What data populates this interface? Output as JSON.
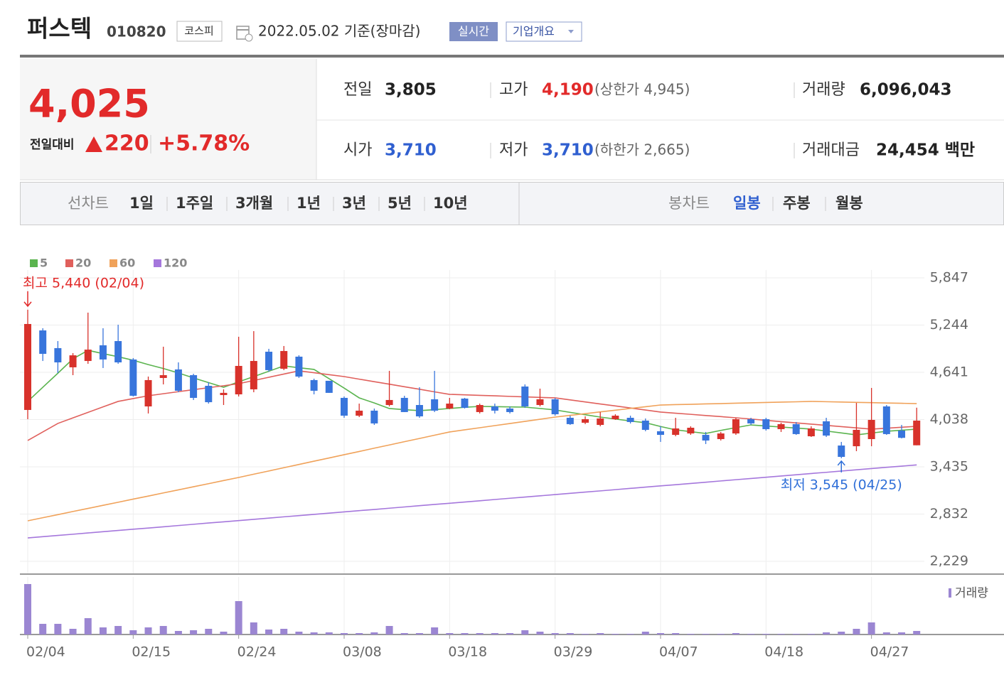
{
  "header": {
    "name": "퍼스텍",
    "code": "010820",
    "market": "코스피",
    "date": "2022.05.02 기준(장마감)",
    "realtime_button": "실시간",
    "company_button": "기업개요"
  },
  "quote": {
    "price": "4,025",
    "change_label": "전일대비",
    "change": "220",
    "change_pct": "+5.78%",
    "items": [
      {
        "label": "전일",
        "value": "3,805"
      },
      {
        "label": "고가",
        "value": "4,190",
        "note": "(상한가 4,945)"
      },
      {
        "label": "거래량",
        "value": "6,096,043"
      },
      {
        "label": "시가",
        "value": "3,710"
      },
      {
        "label": "저가",
        "value": "3,710",
        "note": "(하한가 2,665)"
      },
      {
        "label": "거래대금",
        "value": "24,454 백만"
      }
    ]
  },
  "tabs": {
    "line_chart": {
      "label": "선차트",
      "periods": [
        "1일",
        "1주일",
        "3개월",
        "1년",
        "3년",
        "5년",
        "10년"
      ]
    },
    "candle_chart": {
      "label": "봉차트",
      "periods": [
        "일봉",
        "주봉",
        "월봉"
      ],
      "selected": "일봉"
    }
  },
  "chart_data": {
    "type": "candlestick",
    "up_color": "#d8322b",
    "down_color": "#3875dc",
    "grid": true,
    "categories": [
      "02/04",
      null,
      null,
      null,
      null,
      null,
      null,
      "02/15",
      null,
      null,
      null,
      null,
      null,
      null,
      "02/24",
      null,
      null,
      null,
      null,
      null,
      null,
      "03/08",
      null,
      null,
      null,
      null,
      null,
      null,
      "03/18",
      null,
      null,
      null,
      null,
      null,
      null,
      "03/29",
      null,
      null,
      null,
      null,
      null,
      null,
      "04/07",
      null,
      null,
      null,
      null,
      null,
      null,
      "04/18",
      null,
      null,
      null,
      null,
      null,
      null,
      "04/27",
      null,
      null,
      null
    ],
    "open": [
      4161,
      5176,
      4950,
      4705,
      4786,
      4986,
      5040,
      4805,
      4206,
      4569,
      4678,
      4605,
      4469,
      4351,
      4360,
      4424,
      4904,
      4687,
      4841,
      4542,
      4533,
      4315,
      4088,
      4152,
      4224,
      4315,
      4224,
      4297,
      4179,
      4306,
      4134,
      4206,
      4179,
      4460,
      4224,
      4297,
      4061,
      3998,
      3970,
      4043,
      4061,
      4025,
      3889,
      3843,
      3861,
      3843,
      3789,
      3861,
      4043,
      4043,
      3916,
      3980,
      3825,
      4016,
      3707,
      3698,
      3789,
      4206,
      3898,
      3710
    ],
    "high": [
      5440,
      5204,
      5040,
      4886,
      5403,
      5204,
      5249,
      4823,
      4587,
      4968,
      4768,
      4623,
      4514,
      4424,
      5095,
      5167,
      4941,
      4977,
      4859,
      4560,
      4533,
      4333,
      4242,
      4179,
      4660,
      4342,
      4451,
      4660,
      4315,
      4315,
      4242,
      4242,
      4206,
      4487,
      4433,
      4315,
      4088,
      4079,
      4134,
      4106,
      4088,
      4052,
      3952,
      4061,
      3952,
      3880,
      3880,
      4061,
      4061,
      4061,
      3998,
      4007,
      3952,
      4061,
      3753,
      4251,
      4442,
      4224,
      3970,
      4190
    ],
    "low": [
      4043,
      4786,
      4632,
      4605,
      4750,
      4696,
      4750,
      4333,
      4116,
      4487,
      4387,
      4288,
      4242,
      4224,
      4333,
      4387,
      4650,
      4669,
      4569,
      4360,
      4379,
      4061,
      4070,
      3970,
      4206,
      4134,
      4061,
      4134,
      4170,
      4179,
      4116,
      4116,
      4116,
      4188,
      4206,
      4088,
      3970,
      3980,
      3952,
      4034,
      3988,
      3889,
      3753,
      3825,
      3843,
      3726,
      3771,
      3843,
      3970,
      3898,
      3880,
      3843,
      3816,
      3816,
      3545,
      3635,
      3698,
      3843,
      3798,
      3710
    ],
    "close": [
      5258,
      4877,
      4768,
      4858,
      4931,
      4805,
      4768,
      4342,
      4542,
      4605,
      4406,
      4315,
      4260,
      4379,
      4723,
      4786,
      4669,
      4913,
      4587,
      4406,
      4379,
      4088,
      4152,
      3989,
      4288,
      4134,
      4079,
      4152,
      4242,
      4188,
      4224,
      4152,
      4134,
      4206,
      4297,
      4106,
      3980,
      4043,
      4052,
      4088,
      4007,
      3907,
      3843,
      3925,
      3934,
      3771,
      3861,
      4043,
      3989,
      3916,
      3980,
      3853,
      3925,
      3834,
      3562,
      3907,
      4034,
      3853,
      3805,
      4025
    ],
    "series": [
      {
        "name": "5",
        "color": "#5bb44f",
        "values": [
          4270,
          4450,
          4630,
          4813,
          4922,
          4880,
          4840,
          4795,
          4740,
          4690,
          4633,
          4570,
          4510,
          4451,
          4520,
          4587,
          4655,
          4723,
          4700,
          4678,
          4560,
          4440,
          4315,
          4250,
          4179,
          4165,
          4152,
          4165,
          4180,
          4195,
          4206,
          4203,
          4200,
          4197,
          4180,
          4161,
          4130,
          4100,
          4070,
          4045,
          4020,
          3998,
          3950,
          3907,
          3884,
          3861,
          3900,
          3935,
          3970,
          3956,
          3943,
          3930,
          3916,
          3892,
          3868,
          3843,
          3866,
          3889,
          3902,
          3916
        ]
      },
      {
        "name": "20",
        "color": "#e0605c",
        "values": [
          3771,
          3880,
          3989,
          4060,
          4130,
          4200,
          4270,
          4306,
          4342,
          4368,
          4394,
          4420,
          4445,
          4470,
          4496,
          4537,
          4578,
          4619,
          4660,
          4636,
          4611,
          4587,
          4554,
          4522,
          4490,
          4457,
          4425,
          4392,
          4360,
          4354,
          4347,
          4341,
          4334,
          4328,
          4321,
          4315,
          4289,
          4263,
          4237,
          4212,
          4186,
          4160,
          4134,
          4119,
          4105,
          4090,
          4076,
          4061,
          4045,
          4029,
          4012,
          3996,
          3980,
          3964,
          3948,
          3932,
          3916,
          3928,
          3940,
          3952
        ]
      },
      {
        "name": "60",
        "color": "#f0a25a",
        "values": [
          2746,
          2786,
          2825,
          2865,
          2904,
          2944,
          2983,
          3023,
          3062,
          3102,
          3141,
          3181,
          3220,
          3260,
          3299,
          3341,
          3382,
          3424,
          3465,
          3507,
          3548,
          3590,
          3631,
          3673,
          3714,
          3756,
          3797,
          3839,
          3880,
          3907,
          3934,
          3961,
          3988,
          4015,
          4042,
          4070,
          4092,
          4114,
          4136,
          4158,
          4180,
          4202,
          4224,
          4229,
          4233,
          4238,
          4242,
          4247,
          4252,
          4256,
          4261,
          4265,
          4270,
          4266,
          4262,
          4258,
          4254,
          4250,
          4246,
          4242
        ]
      },
      {
        "name": "120",
        "color": "#a577dc",
        "values": [
          2528,
          2544,
          2560,
          2575,
          2591,
          2607,
          2623,
          2639,
          2654,
          2670,
          2686,
          2702,
          2718,
          2733,
          2749,
          2765,
          2781,
          2797,
          2812,
          2828,
          2844,
          2860,
          2876,
          2891,
          2907,
          2923,
          2939,
          2955,
          2970,
          2986,
          3002,
          3018,
          3034,
          3049,
          3065,
          3081,
          3097,
          3113,
          3128,
          3144,
          3160,
          3176,
          3192,
          3207,
          3223,
          3239,
          3255,
          3271,
          3286,
          3302,
          3318,
          3334,
          3350,
          3365,
          3381,
          3397,
          3413,
          3429,
          3444,
          3460
        ]
      }
    ],
    "volume": {
      "name": "거래량",
      "color": "#9b86d2",
      "lim": [
        0,
        98800000
      ],
      "values": [
        86620000,
        18300000,
        18300000,
        9760000,
        28060000,
        12200000,
        14640000,
        7320000,
        12200000,
        14640000,
        6100000,
        7320000,
        9760000,
        4880000,
        57340000,
        20740000,
        8540000,
        9760000,
        4880000,
        3660000,
        3660000,
        2440000,
        2440000,
        3660000,
        14640000,
        2440000,
        2440000,
        12200000,
        2440000,
        2440000,
        2440000,
        2440000,
        2440000,
        7320000,
        4880000,
        2440000,
        2440000,
        1220000,
        2440000,
        1220000,
        1220000,
        4880000,
        2440000,
        2440000,
        1220000,
        1220000,
        1220000,
        2440000,
        1220000,
        1220000,
        1220000,
        1220000,
        1220000,
        3660000,
        4880000,
        9760000,
        20740000,
        3660000,
        3660000,
        6096043
      ]
    },
    "ylim": [
      2066,
      5947
    ],
    "yticks": [
      {
        "value": 2229,
        "label": "2,229"
      },
      {
        "value": 2832,
        "label": "2,832"
      },
      {
        "value": 3435,
        "label": "3,435"
      },
      {
        "value": 4038,
        "label": "4,038"
      },
      {
        "value": 4641,
        "label": "4,641"
      },
      {
        "value": 5244,
        "label": "5,244"
      },
      {
        "value": 5847,
        "label": "5,847"
      }
    ],
    "annotations": [
      "최고 5,440 (02/04)",
      "최저 3,545 (04/25)"
    ]
  }
}
